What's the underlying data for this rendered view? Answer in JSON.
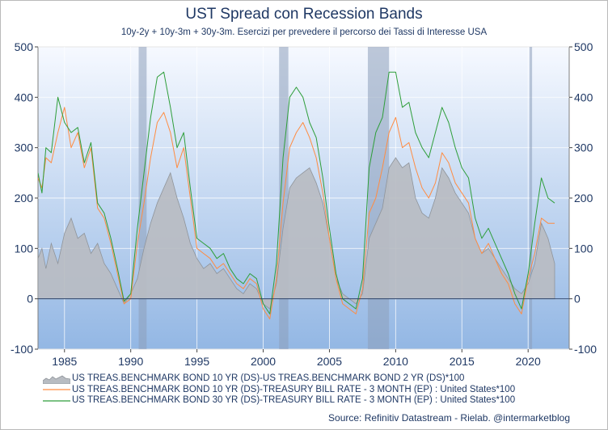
{
  "title": "UST Spread con Recession Bands",
  "subtitle": "10y-2y + 10y-3m + 30y-3m. Esercizi per prevedere il percorso dei Tassi di Interesse USA",
  "source": "Source: Refinitiv Datastream  -  Rielab. @intermarketblog",
  "colors": {
    "plot_top": "#f6f9ff",
    "plot_bottom": "#93b7e4",
    "recession_band": "#8c9fb9",
    "area_fill": "#b8bcc2",
    "area_line": "#8f949a",
    "line_10y3m": "#ff8c42",
    "line_30y3m": "#2e9e3a",
    "text": "#1f3864"
  },
  "legend": [
    {
      "label": "US TREAS.BENCHMARK BOND 10 YR (DS)-US TREAS.BENCHMARK BOND 2 YR (DS)*100",
      "kind": "area"
    },
    {
      "label": "US TREAS.BENCHMARK BOND 10 YR (DS)-TREASURY BILL RATE - 3 MONTH (EP) : United States*100",
      "kind": "line-orange"
    },
    {
      "label": "US TREAS.BENCHMARK BOND 30 YR (DS)-TREASURY BILL RATE - 3 MONTH (EP) : United States*100",
      "kind": "line-green"
    }
  ],
  "chart_data": {
    "type": "area",
    "xlim": [
      1983,
      2023.1
    ],
    "ylim": [
      -100,
      500
    ],
    "x_ticks": [
      1985,
      1990,
      1995,
      2000,
      2005,
      2010,
      2015,
      2020
    ],
    "y_ticks": [
      -100,
      0,
      100,
      200,
      300,
      400,
      500
    ],
    "grid": true,
    "dual_y_axis": true,
    "legend_position": "bottom",
    "recession_bands": [
      [
        1990.6,
        1991.2
      ],
      [
        2001.2,
        2001.9
      ],
      [
        2007.9,
        2009.5
      ],
      [
        2020.1,
        2020.3
      ]
    ],
    "series": [
      {
        "name": "US TREAS.BENCHMARK BOND 10 YR (DS)-US TREAS.BENCHMARK BOND 2 YR (DS)*100",
        "style": "area",
        "x": [
          1983.0,
          1983.3,
          1983.6,
          1984.0,
          1984.5,
          1985.0,
          1985.5,
          1986.0,
          1986.5,
          1987.0,
          1987.5,
          1988.0,
          1988.5,
          1989.0,
          1989.5,
          1990.0,
          1990.5,
          1991.0,
          1991.5,
          1992.0,
          1992.5,
          1993.0,
          1993.5,
          1994.0,
          1994.5,
          1995.0,
          1995.5,
          1996.0,
          1996.5,
          1997.0,
          1997.5,
          1998.0,
          1998.5,
          1999.0,
          1999.5,
          2000.0,
          2000.5,
          2001.0,
          2001.5,
          2002.0,
          2002.5,
          2003.0,
          2003.5,
          2004.0,
          2004.5,
          2005.0,
          2005.5,
          2006.0,
          2006.5,
          2007.0,
          2007.5,
          2008.0,
          2008.5,
          2009.0,
          2009.5,
          2010.0,
          2010.5,
          2011.0,
          2011.5,
          2012.0,
          2012.5,
          2013.0,
          2013.5,
          2014.0,
          2014.5,
          2015.0,
          2015.5,
          2016.0,
          2016.5,
          2017.0,
          2017.5,
          2018.0,
          2018.5,
          2019.0,
          2019.5,
          2020.0,
          2020.5,
          2021.0,
          2021.5,
          2022.0
        ],
        "y": [
          80,
          100,
          60,
          110,
          70,
          130,
          160,
          120,
          130,
          90,
          110,
          70,
          50,
          20,
          -10,
          10,
          40,
          100,
          150,
          190,
          220,
          250,
          200,
          160,
          110,
          80,
          60,
          70,
          50,
          60,
          40,
          20,
          10,
          30,
          20,
          -10,
          -20,
          30,
          140,
          220,
          240,
          250,
          260,
          230,
          190,
          120,
          40,
          10,
          0,
          -10,
          10,
          120,
          150,
          180,
          260,
          280,
          260,
          270,
          200,
          170,
          160,
          200,
          260,
          240,
          210,
          190,
          170,
          120,
          90,
          100,
          80,
          60,
          40,
          20,
          10,
          30,
          70,
          150,
          120,
          70
        ]
      },
      {
        "name": "US TREAS.BENCHMARK BOND 10 YR (DS)-TREASURY BILL RATE - 3 MONTH (EP) : United States*100",
        "style": "line",
        "x": [
          1983.0,
          1983.3,
          1983.6,
          1984.0,
          1984.5,
          1985.0,
          1985.5,
          1986.0,
          1986.5,
          1987.0,
          1987.5,
          1988.0,
          1988.5,
          1989.0,
          1989.5,
          1990.0,
          1990.5,
          1991.0,
          1991.5,
          1992.0,
          1992.5,
          1993.0,
          1993.5,
          1994.0,
          1994.5,
          1995.0,
          1995.5,
          1996.0,
          1996.5,
          1997.0,
          1997.5,
          1998.0,
          1998.5,
          1999.0,
          1999.5,
          2000.0,
          2000.5,
          2001.0,
          2001.5,
          2002.0,
          2002.5,
          2003.0,
          2003.5,
          2004.0,
          2004.5,
          2005.0,
          2005.5,
          2006.0,
          2006.5,
          2007.0,
          2007.5,
          2008.0,
          2008.5,
          2009.0,
          2009.5,
          2010.0,
          2010.5,
          2011.0,
          2011.5,
          2012.0,
          2012.5,
          2013.0,
          2013.5,
          2014.0,
          2014.5,
          2015.0,
          2015.5,
          2016.0,
          2016.5,
          2017.0,
          2017.5,
          2018.0,
          2018.5,
          2019.0,
          2019.5,
          2020.0,
          2020.5,
          2021.0,
          2021.5,
          2022.0
        ],
        "y": [
          240,
          220,
          280,
          270,
          330,
          380,
          300,
          330,
          260,
          300,
          180,
          160,
          110,
          50,
          -10,
          0,
          110,
          190,
          280,
          350,
          370,
          330,
          260,
          300,
          200,
          100,
          90,
          80,
          60,
          70,
          50,
          30,
          20,
          40,
          30,
          -20,
          -40,
          40,
          190,
          300,
          330,
          350,
          320,
          280,
          210,
          120,
          40,
          -10,
          -20,
          -30,
          20,
          170,
          200,
          260,
          330,
          360,
          300,
          310,
          260,
          220,
          200,
          230,
          290,
          270,
          230,
          210,
          190,
          120,
          90,
          110,
          80,
          50,
          30,
          -10,
          -30,
          40,
          90,
          160,
          150,
          150
        ]
      },
      {
        "name": "US TREAS.BENCHMARK BOND 30 YR (DS)-TREASURY BILL RATE - 3 MONTH (EP) : United States*100",
        "style": "line",
        "x": [
          1983.0,
          1983.3,
          1983.6,
          1984.0,
          1984.5,
          1985.0,
          1985.5,
          1986.0,
          1986.5,
          1987.0,
          1987.5,
          1988.0,
          1988.5,
          1989.0,
          1989.5,
          1990.0,
          1990.5,
          1991.0,
          1991.5,
          1992.0,
          1992.5,
          1993.0,
          1993.5,
          1994.0,
          1994.5,
          1995.0,
          1995.5,
          1996.0,
          1996.5,
          1997.0,
          1997.5,
          1998.0,
          1998.5,
          1999.0,
          1999.5,
          2000.0,
          2000.5,
          2001.0,
          2001.5,
          2002.0,
          2002.5,
          2003.0,
          2003.5,
          2004.0,
          2004.5,
          2005.0,
          2005.5,
          2006.0,
          2006.5,
          2007.0,
          2007.5,
          2008.0,
          2008.5,
          2009.0,
          2009.5,
          2010.0,
          2010.5,
          2011.0,
          2011.5,
          2012.0,
          2012.5,
          2013.0,
          2013.5,
          2014.0,
          2014.5,
          2015.0,
          2015.5,
          2016.0,
          2016.5,
          2017.0,
          2017.5,
          2018.0,
          2018.5,
          2019.0,
          2019.5,
          2020.0,
          2020.5,
          2021.0,
          2021.5,
          2022.0
        ],
        "y": [
          250,
          210,
          300,
          290,
          400,
          350,
          330,
          340,
          270,
          310,
          190,
          170,
          120,
          60,
          -5,
          10,
          140,
          250,
          360,
          440,
          450,
          380,
          300,
          330,
          220,
          120,
          110,
          100,
          80,
          90,
          60,
          40,
          30,
          50,
          40,
          -10,
          -30,
          70,
          280,
          400,
          420,
          400,
          350,
          320,
          240,
          140,
          50,
          0,
          -10,
          -20,
          40,
          260,
          330,
          360,
          450,
          450,
          380,
          390,
          330,
          300,
          280,
          330,
          380,
          350,
          300,
          260,
          240,
          160,
          120,
          140,
          110,
          80,
          50,
          10,
          -20,
          50,
          150,
          240,
          200,
          190
        ]
      }
    ]
  }
}
